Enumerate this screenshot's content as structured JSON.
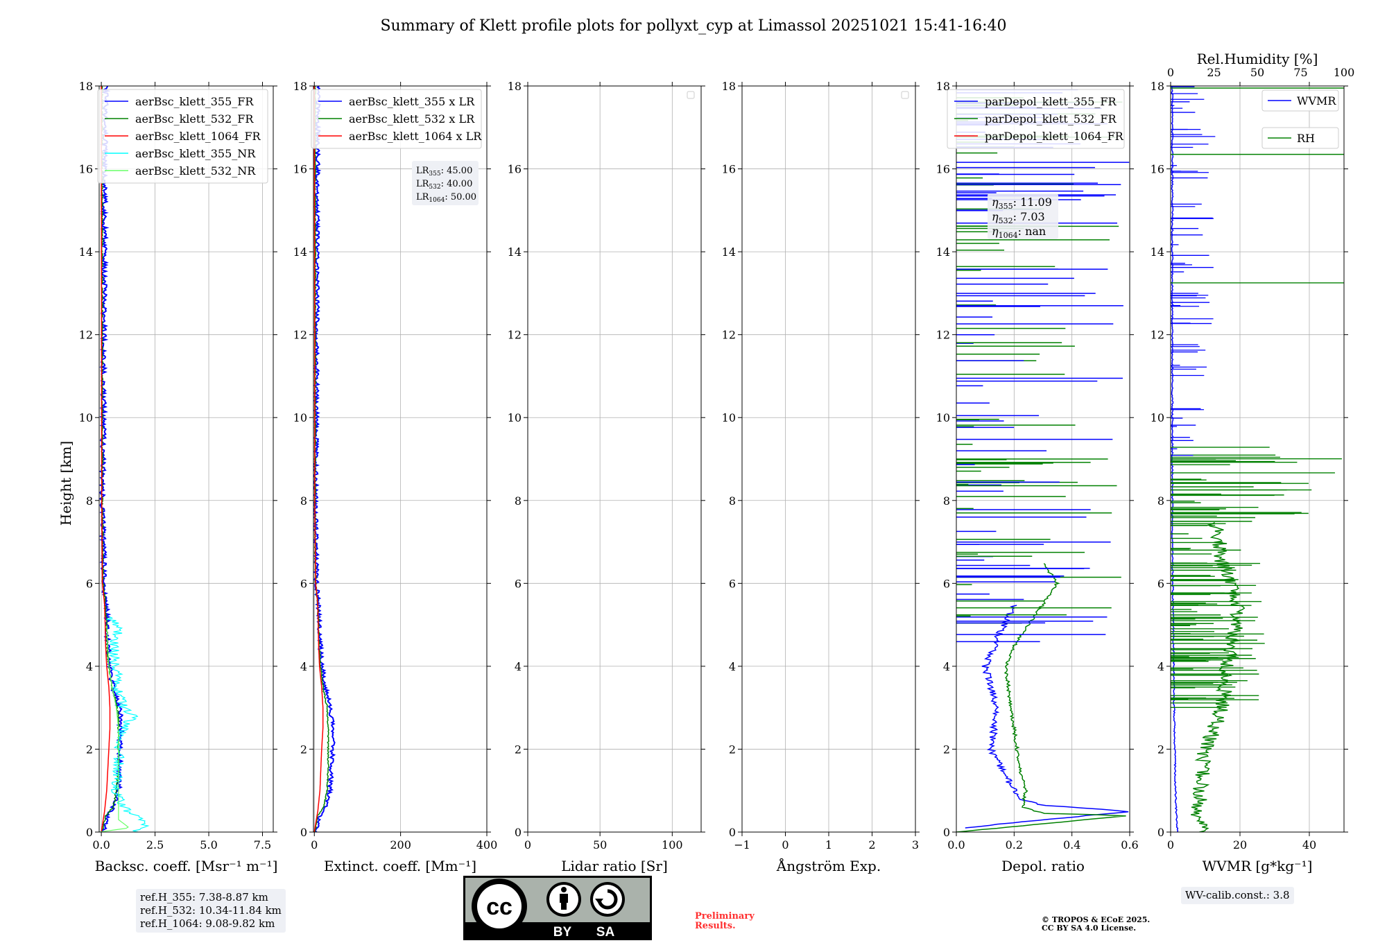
{
  "title": "Summary of Klett profile plots for pollyxt_cyp at Limassol 20251021 15:41-16:40",
  "ylabel": "Height [km]",
  "colors": {
    "blue": "#0000ff",
    "green": "#008000",
    "red": "#ff0000",
    "cyan": "#00ffff",
    "lightgreen": "#66ff66"
  },
  "chart_data": [
    {
      "id": "backscatter",
      "type": "line",
      "xlabel": "Backsc. coeff. [Msr⁻¹ m⁻¹]",
      "xlim": [
        -0.1,
        8.0
      ],
      "ylim": [
        0,
        18
      ],
      "xticks": [
        0,
        2.5,
        5.0,
        7.5
      ],
      "xtick_labels": [
        "0.0",
        "2.5",
        "5.0",
        "7.5"
      ],
      "yticks": [
        0,
        2,
        4,
        6,
        8,
        10,
        12,
        14,
        16,
        18
      ],
      "ytick_labels": [
        "0",
        "2",
        "4",
        "6",
        "8",
        "10",
        "12",
        "14",
        "16",
        "18"
      ],
      "legend": {
        "placement": "top-right",
        "entries": [
          "aerBsc_klett_355_FR",
          "aerBsc_klett_532_FR",
          "aerBsc_klett_1064_FR",
          "aerBsc_klett_355_NR",
          "aerBsc_klett_532_NR"
        ],
        "colors": [
          "#0000ff",
          "#008000",
          "#ff0000",
          "#00ffff",
          "#66ff66"
        ]
      },
      "series": [
        {
          "name": "aerBsc_klett_355_FR",
          "color": "#0000ff",
          "width": 2,
          "noise": 0.12,
          "y": [
            0.0,
            0.4,
            0.6,
            1.0,
            1.5,
            2.0,
            2.5,
            3.0,
            3.5,
            4.0,
            4.5,
            5.0,
            5.5,
            6.0,
            7.0,
            8.0,
            10.0,
            12.0,
            14.0,
            16.0,
            18.0
          ],
          "x": [
            0.05,
            0.3,
            0.55,
            0.8,
            0.85,
            0.88,
            0.9,
            0.85,
            0.55,
            0.4,
            0.3,
            0.28,
            0.22,
            0.12,
            0.1,
            0.05,
            0.1,
            0.12,
            0.15,
            0.15,
            0.2
          ]
        },
        {
          "name": "aerBsc_klett_532_FR",
          "color": "#008000",
          "width": 1.5,
          "noise": 0.04,
          "y": [
            0.0,
            0.4,
            0.6,
            1.0,
            1.5,
            2.0,
            2.5,
            3.0,
            3.5,
            4.0,
            4.5,
            5.0,
            5.5,
            6.0,
            7.0,
            8.0,
            10.0,
            12.0,
            14.0,
            16.0,
            18.0
          ],
          "x": [
            0.02,
            0.2,
            0.55,
            0.7,
            0.8,
            0.8,
            0.8,
            0.75,
            0.5,
            0.35,
            0.28,
            0.25,
            0.2,
            0.08,
            0.06,
            0.04,
            0.04,
            0.04,
            0.04,
            0.04,
            0.04
          ]
        },
        {
          "name": "aerBsc_klett_1064_FR",
          "color": "#ff0000",
          "width": 1.5,
          "noise": 0.0,
          "y": [
            0.0,
            0.5,
            1.0,
            1.5,
            2.0,
            2.5,
            3.0,
            3.5,
            4.0,
            4.5,
            5.0,
            5.5,
            6.0,
            8.0,
            12.0,
            18.0
          ],
          "x": [
            0.0,
            0.15,
            0.25,
            0.3,
            0.35,
            0.4,
            0.4,
            0.35,
            0.25,
            0.2,
            0.18,
            0.15,
            0.05,
            0.02,
            0.01,
            0.0
          ]
        },
        {
          "name": "aerBsc_klett_355_NR",
          "color": "#00ffff",
          "width": 1.2,
          "noise": 0.25,
          "y": [
            0.0,
            0.2,
            0.4,
            0.6,
            1.0,
            1.5,
            2.0,
            2.5,
            2.8,
            3.0,
            3.5,
            3.8,
            4.0,
            4.5,
            5.0,
            5.2
          ],
          "x": [
            1.5,
            2.1,
            1.6,
            1.0,
            0.7,
            0.8,
            0.85,
            1.0,
            1.5,
            1.0,
            0.7,
            0.9,
            0.6,
            0.6,
            0.8,
            0.3
          ]
        },
        {
          "name": "aerBsc_klett_532_NR",
          "color": "#66ff66",
          "width": 1.2,
          "noise": 0.0,
          "y": [
            0.0,
            0.1,
            0.3,
            0.6,
            1.0,
            1.5,
            2.0,
            2.5,
            3.0,
            3.5,
            4.0,
            4.5,
            5.0
          ],
          "x": [
            -0.1,
            1.3,
            0.8,
            0.8,
            0.8,
            0.8,
            0.8,
            0.8,
            0.7,
            0.5,
            0.35,
            0.3,
            0.25
          ]
        }
      ],
      "info_box": [
        "ref.H_355: 7.38-8.87 km",
        "ref.H_532: 10.34-11.84 km",
        "ref.H_1064: 9.08-9.82 km"
      ]
    },
    {
      "id": "extinction",
      "type": "line",
      "xlabel": "Extinct. coeff. [Mm⁻¹]",
      "xlim": [
        -2,
        400
      ],
      "ylim": [
        0,
        18
      ],
      "xticks": [
        0,
        200,
        400
      ],
      "xtick_labels": [
        "0",
        "200",
        "400"
      ],
      "yticks": [
        0,
        2,
        4,
        6,
        8,
        10,
        12,
        14,
        16,
        18
      ],
      "ytick_labels": [
        "0",
        "2",
        "4",
        "6",
        "8",
        "10",
        "12",
        "14",
        "16",
        "18"
      ],
      "legend": {
        "placement": "top-right",
        "entries": [
          "aerBsc_klett_355 x LR",
          "aerBsc_klett_532 x LR",
          "aerBsc_klett_1064 x LR"
        ],
        "colors": [
          "#0000ff",
          "#008000",
          "#ff0000"
        ]
      },
      "series": [
        {
          "name": "aerBsc_klett_355 x LR",
          "color": "#0000ff",
          "width": 2,
          "noise": 5,
          "y": [
            0.0,
            0.4,
            0.6,
            1.0,
            1.5,
            2.0,
            2.5,
            3.0,
            3.5,
            4.0,
            4.5,
            5.0,
            5.5,
            6.0,
            7.0,
            8.0,
            10.0,
            12.0,
            14.0,
            16.0,
            18.0
          ],
          "x": [
            2,
            14,
            25,
            36,
            40,
            42,
            43,
            38,
            25,
            18,
            14,
            12,
            10,
            5,
            4,
            3,
            5,
            6,
            7,
            7,
            9
          ]
        },
        {
          "name": "aerBsc_klett_532 x LR",
          "color": "#008000",
          "width": 1.5,
          "noise": 1.5,
          "y": [
            0.0,
            0.4,
            0.6,
            1.0,
            1.5,
            2.0,
            2.5,
            3.0,
            3.5,
            4.0,
            4.5,
            5.0,
            5.5,
            6.0,
            7.0,
            8.0,
            12.0,
            18.0
          ],
          "x": [
            1,
            8,
            22,
            30,
            32,
            32,
            32,
            30,
            20,
            14,
            11,
            10,
            8,
            3,
            2,
            2,
            2,
            2
          ]
        },
        {
          "name": "aerBsc_klett_1064 x LR",
          "color": "#ff0000",
          "width": 1.5,
          "noise": 0,
          "y": [
            0.0,
            0.5,
            1.0,
            1.5,
            2.0,
            2.5,
            3.0,
            3.5,
            4.0,
            4.5,
            5.0,
            5.5,
            6.0,
            8.0,
            12.0,
            18.0
          ],
          "x": [
            0,
            8,
            13,
            15,
            17,
            20,
            20,
            17,
            12,
            10,
            9,
            8,
            3,
            1,
            1,
            0
          ]
        }
      ],
      "annotation": {
        "LR355": "45.00",
        "LR532": "40.00",
        "LR1064": "50.00"
      }
    },
    {
      "id": "lidar_ratio",
      "type": "line",
      "xlabel": "Lidar ratio [Sr]",
      "xlim": [
        0,
        120
      ],
      "ylim": [
        0,
        18
      ],
      "xticks": [
        0,
        50,
        100
      ],
      "xtick_labels": [
        "0",
        "50",
        "100"
      ],
      "yticks": [
        0,
        2,
        4,
        6,
        8,
        10,
        12,
        14,
        16,
        18
      ],
      "ytick_labels": [
        "0",
        "2",
        "4",
        "6",
        "8",
        "10",
        "12",
        "14",
        "16",
        "18"
      ],
      "series": [],
      "legend": {
        "placement": "top-right",
        "entries": []
      }
    },
    {
      "id": "angstrom",
      "type": "line",
      "xlabel": "Ångström Exp.",
      "xlim": [
        -1,
        3
      ],
      "ylim": [
        0,
        18
      ],
      "xticks": [
        -1,
        0,
        1,
        2,
        3
      ],
      "xtick_labels": [
        "−1",
        "0",
        "1",
        "2",
        "3"
      ],
      "yticks": [
        0,
        2,
        4,
        6,
        8,
        10,
        12,
        14,
        16,
        18
      ],
      "ytick_labels": [
        "0",
        "2",
        "4",
        "6",
        "8",
        "10",
        "12",
        "14",
        "16",
        "18"
      ],
      "series": [],
      "legend": {
        "placement": "top-right",
        "entries": []
      }
    },
    {
      "id": "depol",
      "type": "line",
      "xlabel": "Depol. ratio",
      "xlim": [
        0,
        0.6
      ],
      "ylim": [
        0,
        18
      ],
      "xticks": [
        0,
        0.2,
        0.4,
        0.6
      ],
      "xtick_labels": [
        "0.0",
        "0.2",
        "0.4",
        "0.6"
      ],
      "yticks": [
        0,
        2,
        4,
        6,
        8,
        10,
        12,
        14,
        16,
        18
      ],
      "ytick_labels": [
        "0",
        "2",
        "4",
        "6",
        "8",
        "10",
        "12",
        "14",
        "16",
        "18"
      ],
      "legend": {
        "placement": "top-right",
        "entries": [
          "parDepol_klett_355_FR",
          "parDepol_klett_532_FR",
          "parDepol_klett_1064_FR"
        ],
        "colors": [
          "#0000ff",
          "#008000",
          "#ff0000"
        ]
      },
      "series": [
        {
          "name": "parDepol_klett_355_FR",
          "color": "#0000ff",
          "width": 1.5,
          "noise": 0.012,
          "y": [
            0.1,
            0.5,
            0.65,
            0.8,
            1.0,
            1.5,
            2.0,
            2.5,
            3.0,
            3.5,
            4.0,
            4.3,
            4.8,
            5.5
          ],
          "x": [
            0.02,
            0.6,
            0.3,
            0.22,
            0.2,
            0.16,
            0.12,
            0.13,
            0.14,
            0.12,
            0.1,
            0.12,
            0.15,
            0.2
          ]
        },
        {
          "name": "parDepol_klett_532_FR",
          "color": "#008000",
          "width": 1.5,
          "noise": 0.006,
          "y": [
            0.0,
            0.4,
            0.45,
            0.6,
            1.0,
            1.5,
            2.0,
            2.5,
            3.0,
            3.5,
            4.0,
            4.5,
            5.0,
            5.5,
            6.0,
            6.5
          ],
          "x": [
            0.0,
            0.6,
            0.3,
            0.23,
            0.24,
            0.22,
            0.21,
            0.2,
            0.19,
            0.18,
            0.17,
            0.2,
            0.25,
            0.3,
            0.35,
            0.3
          ]
        }
      ],
      "eta": {
        "eta355": "11.09",
        "eta532": "7.03",
        "eta1064": "nan"
      }
    },
    {
      "id": "wvmr",
      "type": "line",
      "xlabel": "WVMR [g*kg⁻¹]",
      "xlim": [
        0,
        50
      ],
      "ylim": [
        0,
        18
      ],
      "xticks": [
        0,
        20,
        40
      ],
      "xtick_labels": [
        "0",
        "20",
        "40"
      ],
      "x2label": "Rel.Humidity [%]",
      "x2lim": [
        0,
        100
      ],
      "x2ticks": [
        0,
        25,
        50,
        75,
        100
      ],
      "x2tick_labels": [
        "0",
        "25",
        "50",
        "75",
        "100"
      ],
      "yticks": [
        0,
        2,
        4,
        6,
        8,
        10,
        12,
        14,
        16,
        18
      ],
      "ytick_labels": [
        "0",
        "2",
        "4",
        "6",
        "8",
        "10",
        "12",
        "14",
        "16",
        "18"
      ],
      "legend": {
        "placement": "top-right",
        "entries": [
          "WVMR",
          "RH"
        ],
        "colors": [
          "#0000ff",
          "#008000"
        ]
      },
      "series": [
        {
          "name": "WVMR",
          "color": "#0000ff",
          "width": 1.5,
          "noise": 0.2,
          "y": [
            0.0,
            0.2,
            0.5,
            1.0,
            2.0,
            3.0,
            4.0,
            5.0,
            6.0,
            7.0,
            8.0,
            10.0,
            12.0,
            14.0,
            16.0,
            18.0
          ],
          "x": [
            2.0,
            1.8,
            1.6,
            1.4,
            1.2,
            1.0,
            0.9,
            0.8,
            0.6,
            0.5,
            0.5,
            0.5,
            0.5,
            0.5,
            0.5,
            0.5
          ]
        },
        {
          "name": "RH",
          "color": "#008000",
          "width": 1.5,
          "axis": "x2",
          "noise": 1.5,
          "y": [
            0.0,
            0.3,
            1.0,
            2.0,
            2.5,
            3.0,
            4.0,
            4.5,
            5.0,
            5.5,
            6.0,
            6.5,
            7.0,
            7.5
          ],
          "x": [
            18,
            16,
            17,
            20,
            25,
            30,
            32,
            35,
            38,
            38,
            35,
            30,
            28,
            25
          ]
        }
      ],
      "info_box": "WV-calib.const.: 3.8"
    }
  ],
  "footer": {
    "preliminary_line1": "Preliminary",
    "preliminary_line2": "Results.",
    "copyright_line1": "© TROPOS & ECoE 2025.",
    "copyright_line2": "CC BY SA 4.0 License.",
    "cc_labels": {
      "by": "BY",
      "sa": "SA",
      "cc": "cc"
    }
  }
}
